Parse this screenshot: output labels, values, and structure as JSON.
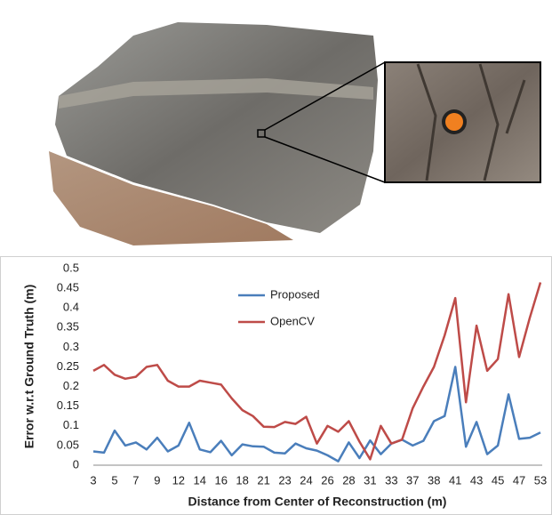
{
  "chart_data": {
    "type": "line",
    "x_label": "Distance from Center of Reconstruction (m)",
    "y_label": "Error w.r.t Ground Truth (m)",
    "categories": [
      "3",
      null,
      "5",
      null,
      "7",
      null,
      "9",
      null,
      "12",
      null,
      "14",
      null,
      "16",
      null,
      "18",
      null,
      "21",
      null,
      "23",
      null,
      "24",
      null,
      "26",
      null,
      "28",
      null,
      "31",
      null,
      "33",
      null,
      "37",
      null,
      "38",
      null,
      "41",
      null,
      "43",
      null,
      "45",
      null,
      "47",
      null,
      "53"
    ],
    "series": [
      {
        "name": "Proposed",
        "color": "#4a7ebb",
        "values": [
          0.035,
          0.032,
          0.088,
          0.05,
          0.058,
          0.04,
          0.07,
          0.035,
          0.05,
          0.108,
          0.04,
          0.033,
          0.062,
          0.025,
          0.053,
          0.048,
          0.047,
          0.032,
          0.03,
          0.055,
          0.043,
          0.037,
          0.025,
          0.01,
          0.058,
          0.018,
          0.063,
          0.028,
          0.055,
          0.065,
          0.05,
          0.062,
          0.112,
          0.125,
          0.25,
          0.047,
          0.11,
          0.028,
          0.05,
          0.18,
          0.067,
          0.07,
          0.083
        ]
      },
      {
        "name": "OpenCV",
        "color": "#be4b48",
        "values": [
          0.24,
          0.255,
          0.23,
          0.22,
          0.225,
          0.25,
          0.255,
          0.215,
          0.2,
          0.2,
          0.215,
          0.21,
          0.205,
          0.17,
          0.14,
          0.125,
          0.098,
          0.097,
          0.11,
          0.105,
          0.123,
          0.055,
          0.1,
          0.085,
          0.112,
          0.06,
          0.015,
          0.1,
          0.055,
          0.065,
          0.145,
          0.2,
          0.25,
          0.33,
          0.425,
          0.16,
          0.355,
          0.24,
          0.27,
          0.435,
          0.275,
          0.375,
          0.465
        ]
      }
    ],
    "ylim": [
      0,
      0.5
    ],
    "yticks": [
      0,
      0.05,
      0.1,
      0.15,
      0.2,
      0.25,
      0.3,
      0.35,
      0.4,
      0.45,
      0.5
    ],
    "grid": false,
    "legend_position": "upper center"
  }
}
